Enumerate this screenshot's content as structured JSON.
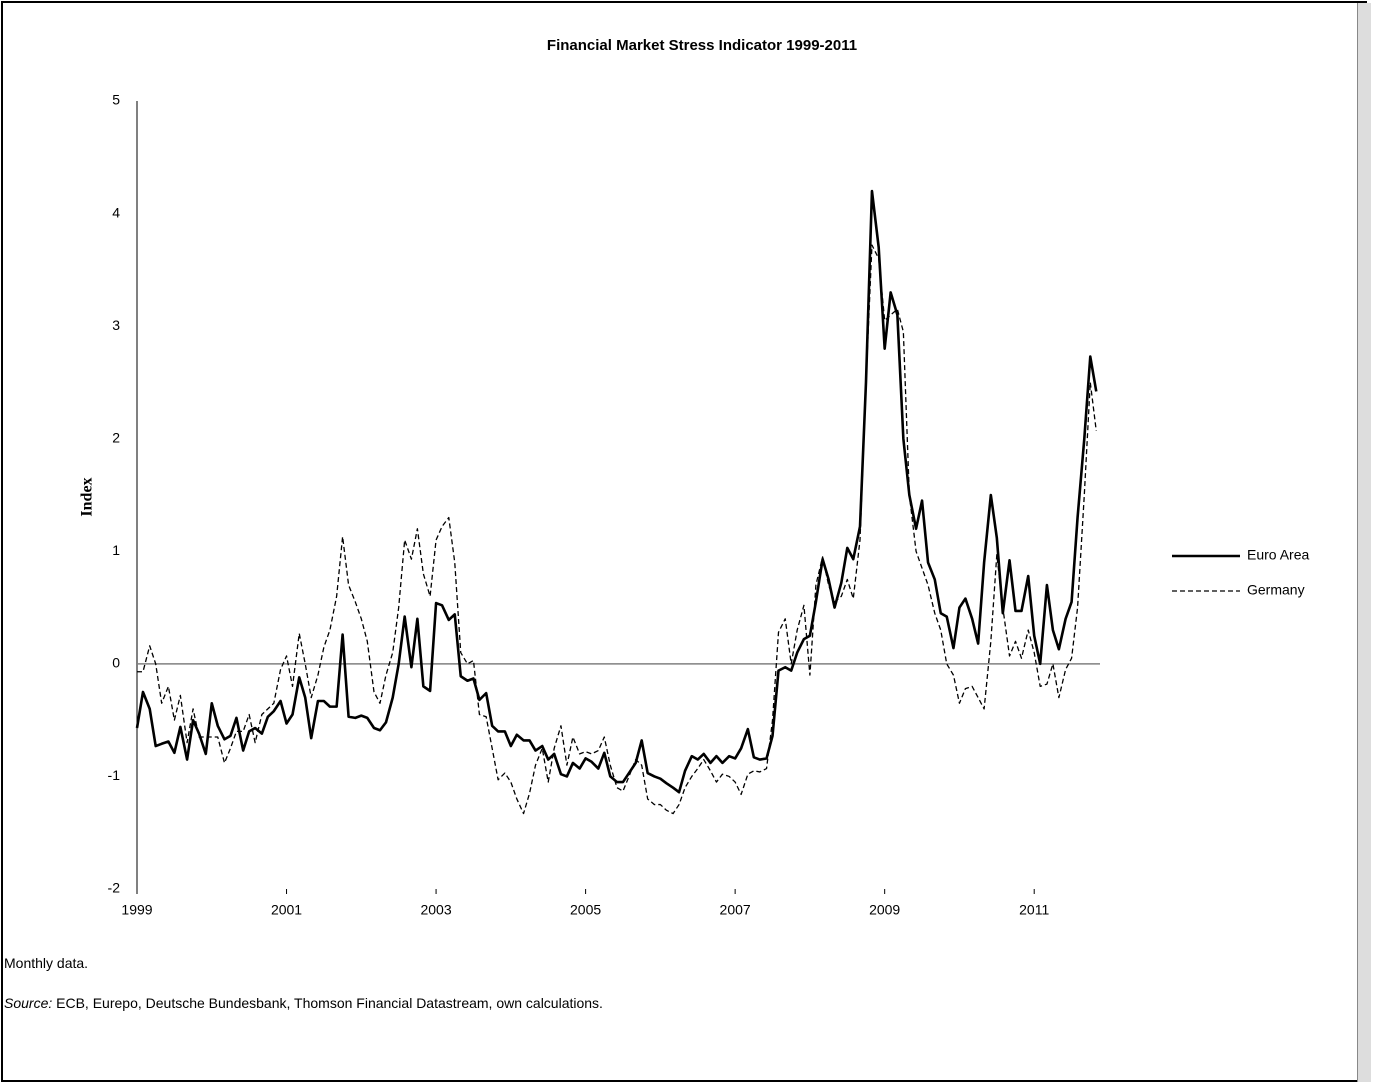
{
  "chart_data": {
    "type": "line",
    "title": "Financial Market Stress Indicator 1999-2011",
    "y_label": "Index",
    "xlim": [
      1999,
      2011.88
    ],
    "xticks": [
      1999,
      2001,
      2003,
      2005,
      2007,
      2009,
      2011
    ],
    "ylim": [
      -2,
      5
    ],
    "yticks": [
      -2,
      -1,
      0,
      1,
      2,
      3,
      4,
      5
    ],
    "grid": false,
    "legend": "right",
    "x": [
      1999,
      1999.08,
      1999.17,
      1999.25,
      1999.33,
      1999.42,
      1999.5,
      1999.58,
      1999.67,
      1999.75,
      1999.83,
      1999.92,
      2000,
      2000.08,
      2000.17,
      2000.25,
      2000.33,
      2000.42,
      2000.5,
      2000.58,
      2000.67,
      2000.75,
      2000.83,
      2000.92,
      2001,
      2001.08,
      2001.17,
      2001.25,
      2001.33,
      2001.42,
      2001.5,
      2001.58,
      2001.67,
      2001.75,
      2001.83,
      2001.92,
      2002,
      2002.08,
      2002.17,
      2002.25,
      2002.33,
      2002.42,
      2002.5,
      2002.58,
      2002.67,
      2002.75,
      2002.83,
      2002.92,
      2003,
      2003.08,
      2003.17,
      2003.25,
      2003.33,
      2003.42,
      2003.5,
      2003.58,
      2003.67,
      2003.75,
      2003.83,
      2003.92,
      2004,
      2004.08,
      2004.17,
      2004.25,
      2004.33,
      2004.42,
      2004.5,
      2004.58,
      2004.67,
      2004.75,
      2004.83,
      2004.92,
      2005,
      2005.08,
      2005.17,
      2005.25,
      2005.33,
      2005.42,
      2005.5,
      2005.58,
      2005.67,
      2005.75,
      2005.83,
      2005.92,
      2006,
      2006.08,
      2006.17,
      2006.25,
      2006.33,
      2006.42,
      2006.5,
      2006.58,
      2006.67,
      2006.75,
      2006.83,
      2006.92,
      2007,
      2007.08,
      2007.17,
      2007.25,
      2007.33,
      2007.42,
      2007.5,
      2007.58,
      2007.67,
      2007.75,
      2007.83,
      2007.92,
      2008,
      2008.08,
      2008.17,
      2008.25,
      2008.33,
      2008.42,
      2008.5,
      2008.58,
      2008.67,
      2008.75,
      2008.83,
      2008.92,
      2009,
      2009.08,
      2009.17,
      2009.25,
      2009.33,
      2009.42,
      2009.5,
      2009.58,
      2009.67,
      2009.75,
      2009.83,
      2009.92,
      2010,
      2010.08,
      2010.17,
      2010.25,
      2010.33,
      2010.42,
      2010.5,
      2010.58,
      2010.67,
      2010.75,
      2010.83,
      2010.92,
      2011,
      2011.08,
      2011.17,
      2011.25,
      2011.33,
      2011.42,
      2011.5,
      2011.58,
      2011.67,
      2011.75,
      2011.83
    ],
    "series": [
      {
        "name": "Euro Area",
        "color": "#000000",
        "dash": "solid",
        "values": [
          -0.57,
          -0.25,
          -0.4,
          -0.73,
          -0.71,
          -0.69,
          -0.79,
          -0.56,
          -0.85,
          -0.5,
          -0.62,
          -0.8,
          -0.35,
          -0.55,
          -0.67,
          -0.64,
          -0.48,
          -0.77,
          -0.6,
          -0.57,
          -0.62,
          -0.47,
          -0.42,
          -0.33,
          -0.53,
          -0.45,
          -0.12,
          -0.3,
          -0.66,
          -0.33,
          -0.33,
          -0.38,
          -0.38,
          0.26,
          -0.47,
          -0.48,
          -0.46,
          -0.48,
          -0.57,
          -0.59,
          -0.52,
          -0.3,
          0.0,
          0.42,
          -0.03,
          0.4,
          -0.2,
          -0.24,
          0.54,
          0.52,
          0.39,
          0.44,
          -0.11,
          -0.15,
          -0.13,
          -0.32,
          -0.26,
          -0.55,
          -0.6,
          -0.6,
          -0.73,
          -0.63,
          -0.68,
          -0.68,
          -0.77,
          -0.73,
          -0.85,
          -0.8,
          -0.98,
          -1.0,
          -0.88,
          -0.93,
          -0.84,
          -0.87,
          -0.93,
          -0.79,
          -1.0,
          -1.05,
          -1.05,
          -0.97,
          -0.88,
          -0.68,
          -0.97,
          -1.0,
          -1.02,
          -1.06,
          -1.1,
          -1.14,
          -0.95,
          -0.82,
          -0.85,
          -0.8,
          -0.88,
          -0.82,
          -0.88,
          -0.82,
          -0.84,
          -0.75,
          -0.58,
          -0.83,
          -0.85,
          -0.84,
          -0.64,
          -0.06,
          -0.03,
          -0.06,
          0.1,
          0.22,
          0.25,
          0.55,
          0.93,
          0.75,
          0.5,
          0.72,
          1.03,
          0.93,
          1.22,
          2.5,
          4.2,
          3.7,
          2.8,
          3.3,
          3.1,
          2.0,
          1.5,
          1.2,
          1.45,
          0.9,
          0.75,
          0.45,
          0.42,
          0.14,
          0.5,
          0.58,
          0.4,
          0.18,
          0.9,
          1.5,
          1.12,
          0.45,
          0.92,
          0.47,
          0.47,
          0.78,
          0.25,
          0.0,
          0.7,
          0.3,
          0.13,
          0.4,
          0.55,
          1.3,
          2.0,
          2.73,
          2.42
        ]
      },
      {
        "name": "Germany",
        "color": "#000000",
        "dash": "dashed",
        "values": [
          -0.07,
          -0.07,
          0.16,
          0.0,
          -0.35,
          -0.2,
          -0.5,
          -0.28,
          -0.7,
          -0.4,
          -0.65,
          -0.65,
          -0.65,
          -0.65,
          -0.88,
          -0.75,
          -0.6,
          -0.6,
          -0.45,
          -0.7,
          -0.45,
          -0.4,
          -0.35,
          -0.05,
          0.07,
          -0.2,
          0.27,
          0.0,
          -0.3,
          -0.1,
          0.15,
          0.3,
          0.6,
          1.13,
          0.7,
          0.55,
          0.4,
          0.2,
          -0.25,
          -0.35,
          -0.1,
          0.1,
          0.5,
          1.1,
          0.93,
          1.2,
          0.8,
          0.6,
          1.1,
          1.22,
          1.3,
          0.9,
          0.1,
          0.0,
          0.03,
          -0.45,
          -0.47,
          -0.75,
          -1.03,
          -0.97,
          -1.05,
          -1.2,
          -1.33,
          -1.15,
          -0.9,
          -0.75,
          -1.05,
          -0.75,
          -0.55,
          -0.9,
          -0.65,
          -0.8,
          -0.78,
          -0.8,
          -0.77,
          -0.65,
          -0.9,
          -1.1,
          -1.13,
          -1.0,
          -0.85,
          -0.9,
          -1.2,
          -1.25,
          -1.25,
          -1.3,
          -1.33,
          -1.25,
          -1.1,
          -1.0,
          -0.93,
          -0.85,
          -0.95,
          -1.05,
          -0.98,
          -1.0,
          -1.05,
          -1.16,
          -0.98,
          -0.95,
          -0.96,
          -0.93,
          -0.5,
          0.28,
          0.4,
          0.0,
          0.3,
          0.52,
          -0.1,
          0.7,
          0.95,
          0.7,
          0.55,
          0.6,
          0.75,
          0.58,
          1.1,
          2.5,
          3.72,
          3.6,
          3.05,
          3.1,
          3.15,
          2.95,
          1.5,
          1.0,
          0.85,
          0.7,
          0.45,
          0.3,
          0.0,
          -0.1,
          -0.35,
          -0.22,
          -0.2,
          -0.3,
          -0.4,
          0.2,
          0.97,
          0.5,
          0.07,
          0.2,
          0.05,
          0.3,
          0.1,
          -0.2,
          -0.18,
          0.0,
          -0.3,
          -0.05,
          0.05,
          0.5,
          1.5,
          2.5,
          2.07
        ]
      }
    ]
  },
  "notes": {
    "frequency": "Monthly data.",
    "source_label": "Source:",
    "source_text": "ECB, Eurepo, Deutsche Bundesbank, Thomson Financial Datastream,  own calculations."
  }
}
